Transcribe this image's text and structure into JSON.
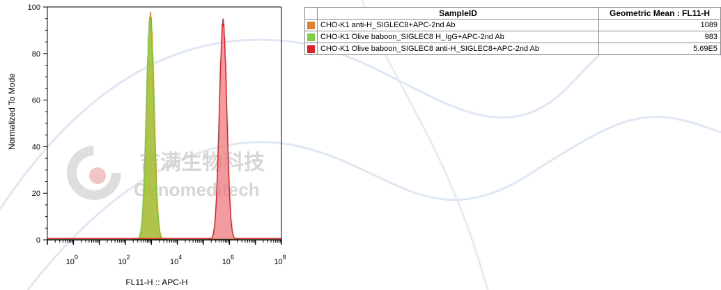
{
  "chart_data": {
    "type": "area",
    "title": "",
    "xlabel": "FL11-H :: APC-H",
    "ylabel": "Normalized To Mode",
    "xscale": "log",
    "xlim": [
      0.1,
      100000000
    ],
    "ylim": [
      0,
      100
    ],
    "x_ticks": [
      {
        "base": "10",
        "exp": "0",
        "value": 1
      },
      {
        "base": "10",
        "exp": "2",
        "value": 100
      },
      {
        "base": "10",
        "exp": "4",
        "value": 10000
      },
      {
        "base": "10",
        "exp": "6",
        "value": 1000000
      },
      {
        "base": "10",
        "exp": "8",
        "value": 100000000
      }
    ],
    "y_ticks": [
      0,
      20,
      40,
      60,
      80,
      100
    ],
    "grid": false,
    "legend": "table-top-right",
    "series": [
      {
        "name": "CHO-K1 anti-H_SIGLEC8+APC-2nd Ab",
        "color": "#e0822a",
        "fill": "#c8a448",
        "geometric_mean": "1089",
        "peak_x": 920,
        "peak_y": 98,
        "width_decades": 0.14
      },
      {
        "name": "CHO-K1 Olive baboon_SIGLEC8 H_IgG+APC-2nd Ab",
        "color": "#7ecf3c",
        "fill": "#a3c63c",
        "geometric_mean": "983",
        "peak_x": 880,
        "peak_y": 96,
        "width_decades": 0.14
      },
      {
        "name": "CHO-K1 Olive baboon_SIGLEC8 anti-H_SIGLEC8+APC-2nd Ab",
        "color": "#e31f26",
        "fill": "#ee7a7f",
        "geometric_mean": "5.69E5",
        "peak_x": 569000,
        "peak_y": 95,
        "width_decades": 0.14
      }
    ]
  },
  "table": {
    "headers": [
      "",
      "SampleID",
      "Geometric Mean : FL11-H"
    ]
  },
  "watermark": {
    "cn": "吉满生物科技",
    "en": "Genomeditech"
  }
}
